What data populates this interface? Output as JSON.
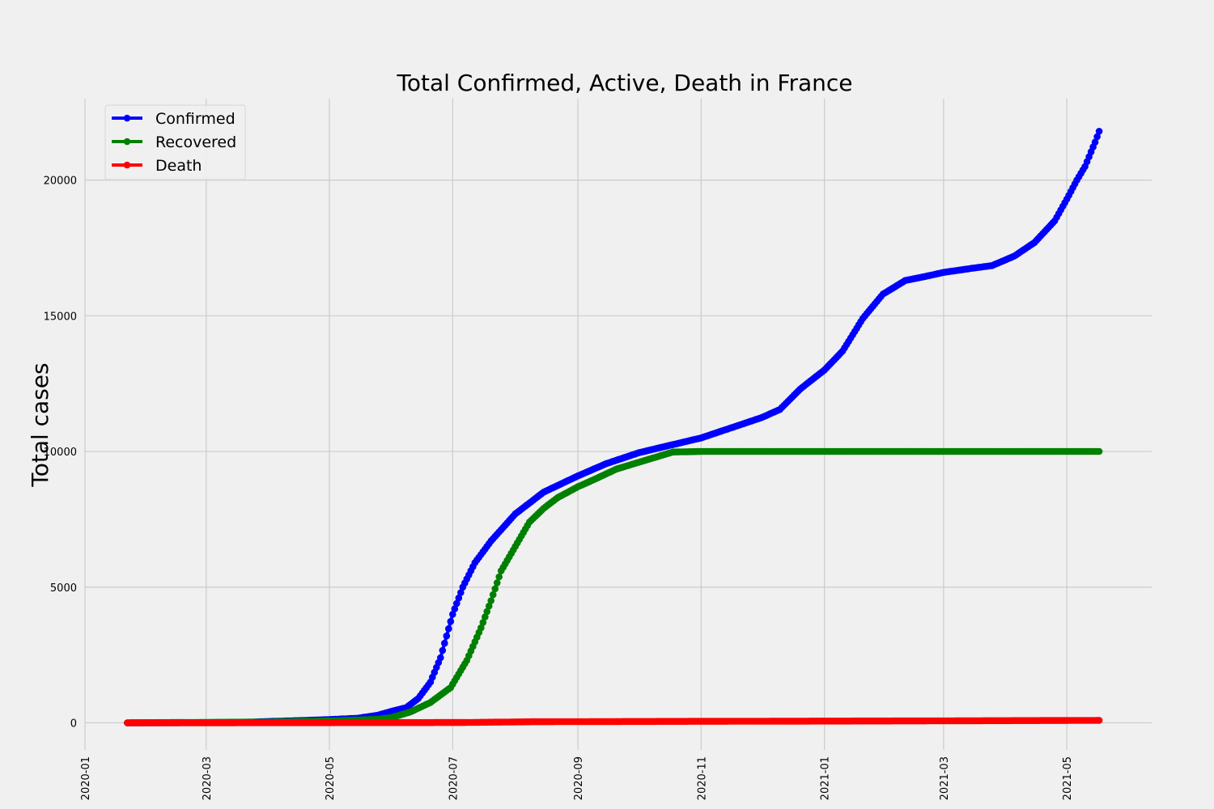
{
  "chart_data": {
    "type": "line",
    "title": "Total Confirmed, Active, Death in France",
    "xlabel": "",
    "ylabel": "Total cases",
    "x_type": "date",
    "xlim": [
      "2020-01-01",
      "2021-06-12"
    ],
    "ylim": [
      -1000,
      23000
    ],
    "x_ticks": [
      "2020-01-01",
      "2020-03-01",
      "2020-05-01",
      "2020-07-01",
      "2020-09-01",
      "2020-11-01",
      "2021-01-01",
      "2021-03-01",
      "2021-05-01"
    ],
    "x_tick_labels": [
      "2020-01",
      "2020-03",
      "2020-05",
      "2020-07",
      "2020-09",
      "2020-11",
      "2021-01",
      "2021-03",
      "2021-05"
    ],
    "y_ticks": [
      0,
      5000,
      10000,
      15000,
      20000
    ],
    "y_tick_labels": [
      "0",
      "5000",
      "10000",
      "15000",
      "20000"
    ],
    "grid": true,
    "legend_position": "top-left",
    "start_date": "2020-01-22",
    "end_date": "2021-05-17",
    "series": [
      {
        "name": "Confirmed",
        "color": "#0000ff",
        "points": [
          [
            "2020-01-22",
            0
          ],
          [
            "2020-03-01",
            5
          ],
          [
            "2020-03-20",
            20
          ],
          [
            "2020-04-01",
            50
          ],
          [
            "2020-04-15",
            80
          ],
          [
            "2020-05-01",
            120
          ],
          [
            "2020-05-15",
            170
          ],
          [
            "2020-05-25",
            280
          ],
          [
            "2020-06-01",
            430
          ],
          [
            "2020-06-08",
            560
          ],
          [
            "2020-06-14",
            900
          ],
          [
            "2020-06-20",
            1500
          ],
          [
            "2020-06-25",
            2400
          ],
          [
            "2020-07-01",
            4000
          ],
          [
            "2020-07-06",
            5000
          ],
          [
            "2020-07-12",
            5900
          ],
          [
            "2020-07-20",
            6700
          ],
          [
            "2020-08-01",
            7700
          ],
          [
            "2020-08-15",
            8500
          ],
          [
            "2020-09-01",
            9100
          ],
          [
            "2020-09-15",
            9550
          ],
          [
            "2020-10-01",
            9950
          ],
          [
            "2020-10-15",
            10200
          ],
          [
            "2020-11-01",
            10500
          ],
          [
            "2020-11-15",
            10850
          ],
          [
            "2020-12-01",
            11250
          ],
          [
            "2020-12-10",
            11550
          ],
          [
            "2020-12-20",
            12300
          ],
          [
            "2021-01-01",
            13000
          ],
          [
            "2021-01-10",
            13700
          ],
          [
            "2021-01-20",
            14900
          ],
          [
            "2021-01-30",
            15800
          ],
          [
            "2021-02-10",
            16300
          ],
          [
            "2021-02-20",
            16450
          ],
          [
            "2021-03-01",
            16600
          ],
          [
            "2021-03-15",
            16750
          ],
          [
            "2021-03-25",
            16850
          ],
          [
            "2021-04-05",
            17200
          ],
          [
            "2021-04-15",
            17700
          ],
          [
            "2021-04-25",
            18500
          ],
          [
            "2021-05-01",
            19300
          ],
          [
            "2021-05-06",
            20000
          ],
          [
            "2021-05-10",
            20500
          ],
          [
            "2021-05-15",
            21400
          ],
          [
            "2021-05-17",
            21800
          ]
        ]
      },
      {
        "name": "Recovered",
        "color": "#008000",
        "points": [
          [
            "2020-01-22",
            0
          ],
          [
            "2020-04-01",
            30
          ],
          [
            "2020-05-01",
            70
          ],
          [
            "2020-05-25",
            130
          ],
          [
            "2020-06-01",
            200
          ],
          [
            "2020-06-10",
            400
          ],
          [
            "2020-06-20",
            750
          ],
          [
            "2020-06-30",
            1300
          ],
          [
            "2020-07-08",
            2300
          ],
          [
            "2020-07-15",
            3500
          ],
          [
            "2020-07-20",
            4500
          ],
          [
            "2020-07-25",
            5600
          ],
          [
            "2020-08-01",
            6500
          ],
          [
            "2020-08-08",
            7400
          ],
          [
            "2020-08-15",
            7900
          ],
          [
            "2020-08-22",
            8300
          ],
          [
            "2020-09-01",
            8700
          ],
          [
            "2020-09-10",
            9000
          ],
          [
            "2020-09-20",
            9350
          ],
          [
            "2020-10-01",
            9600
          ],
          [
            "2020-10-10",
            9800
          ],
          [
            "2020-10-18",
            9980
          ],
          [
            "2020-11-01",
            10000
          ],
          [
            "2021-05-17",
            10000
          ]
        ]
      },
      {
        "name": "Death",
        "color": "#ff0000",
        "points": [
          [
            "2020-01-22",
            0
          ],
          [
            "2020-07-05",
            10
          ],
          [
            "2020-08-10",
            40
          ],
          [
            "2020-11-01",
            55
          ],
          [
            "2021-02-12",
            70
          ],
          [
            "2021-05-17",
            90
          ]
        ]
      }
    ]
  }
}
